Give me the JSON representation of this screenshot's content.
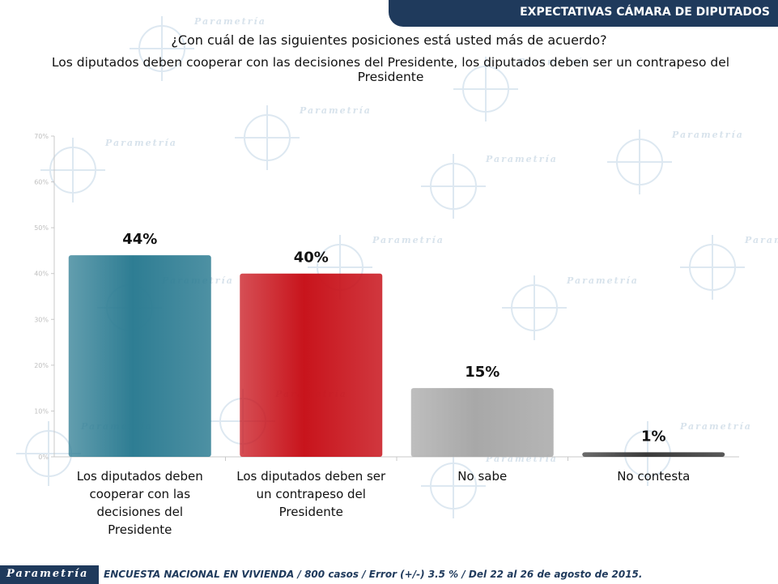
{
  "header": {
    "title": "EXPECTATIVAS CÁMARA DE DIPUTADOS"
  },
  "question": "¿Con cuál de las siguientes posiciones está usted más de acuerdo?",
  "statement": "Los diputados deben cooperar con las decisiones del Presidente, los diputados deben ser un contrapeso del Presidente",
  "watermark": "Parametría",
  "footer": {
    "logo": "Parametría",
    "text": "ENCUESTA NACIONAL EN VIVIENDA / 800 casos / Error (+/-) 3.5 % / Del 22 al 26 de agosto de 2015."
  },
  "chart_data": {
    "type": "bar",
    "categories": [
      "Los diputados deben cooperar con las decisiones del Presidente",
      "Los diputados deben ser un contrapeso del Presidente",
      "No sabe",
      "No contesta"
    ],
    "category_lines": [
      [
        "Los diputados deben",
        "cooperar con las",
        "decisiones del",
        "Presidente"
      ],
      [
        "Los diputados deben ser",
        "un contrapeso del",
        "Presidente"
      ],
      [
        "No sabe"
      ],
      [
        "No contesta"
      ]
    ],
    "values": [
      44,
      40,
      15,
      1
    ],
    "data_labels": [
      "44%",
      "40%",
      "15%",
      "1%"
    ],
    "bar_colors": [
      "#2e7d93",
      "#c8141c",
      "#a8a8a8",
      "#3a3a3a"
    ],
    "ylim": [
      0,
      70
    ],
    "yticks": [
      "0%",
      "10%",
      "20%",
      "30%",
      "40%",
      "50%",
      "60%",
      "70%"
    ],
    "title": "",
    "xlabel": "",
    "ylabel": ""
  }
}
